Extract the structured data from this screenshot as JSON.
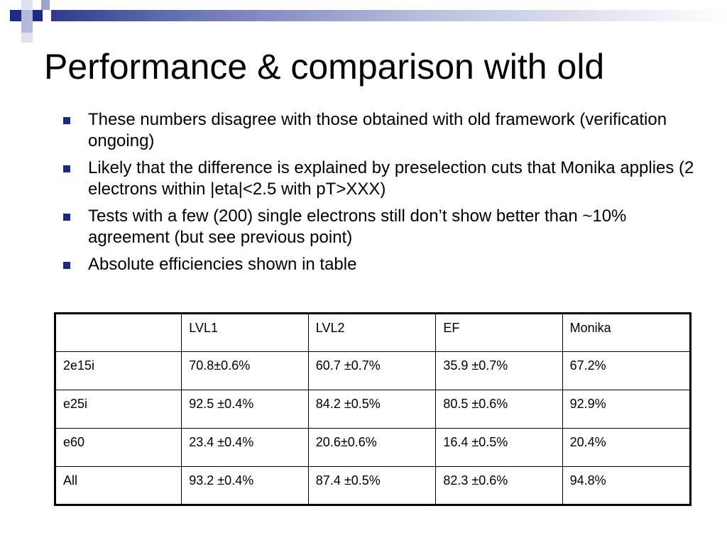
{
  "slide": {
    "title": "Performance & comparison with old",
    "bullets": [
      "These numbers disagree with those obtained with old framework (verification ongoing)",
      "Likely that the difference is explained by preselection cuts that Monika applies (2 electrons within |eta|<2.5 with pT>XXX)",
      "Tests with a few (200) single electrons still don’t show better than ~10% agreement (but see previous point)",
      "Absolute efficiencies shown in table"
    ],
    "accent_color": "#1a2a86"
  },
  "table": {
    "header": [
      "",
      "LVL1",
      "LVL2",
      "EF",
      "Monika"
    ],
    "rows": [
      [
        "2e15i",
        "70.8±0.6%",
        "60.7 ±0.7%",
        "35.9 ±0.7%",
        "67.2%"
      ],
      [
        "e25i",
        "92.5 ±0.4%",
        "84.2 ±0.5%",
        "80.5 ±0.6%",
        "92.9%"
      ],
      [
        "e60",
        "23.4 ±0.4%",
        "20.6±0.6%",
        "16.4 ±0.5%",
        "20.4%"
      ],
      [
        "All",
        "93.2 ±0.4%",
        "87.4 ±0.5%",
        "82.3 ±0.6%",
        "94.8%"
      ]
    ]
  }
}
